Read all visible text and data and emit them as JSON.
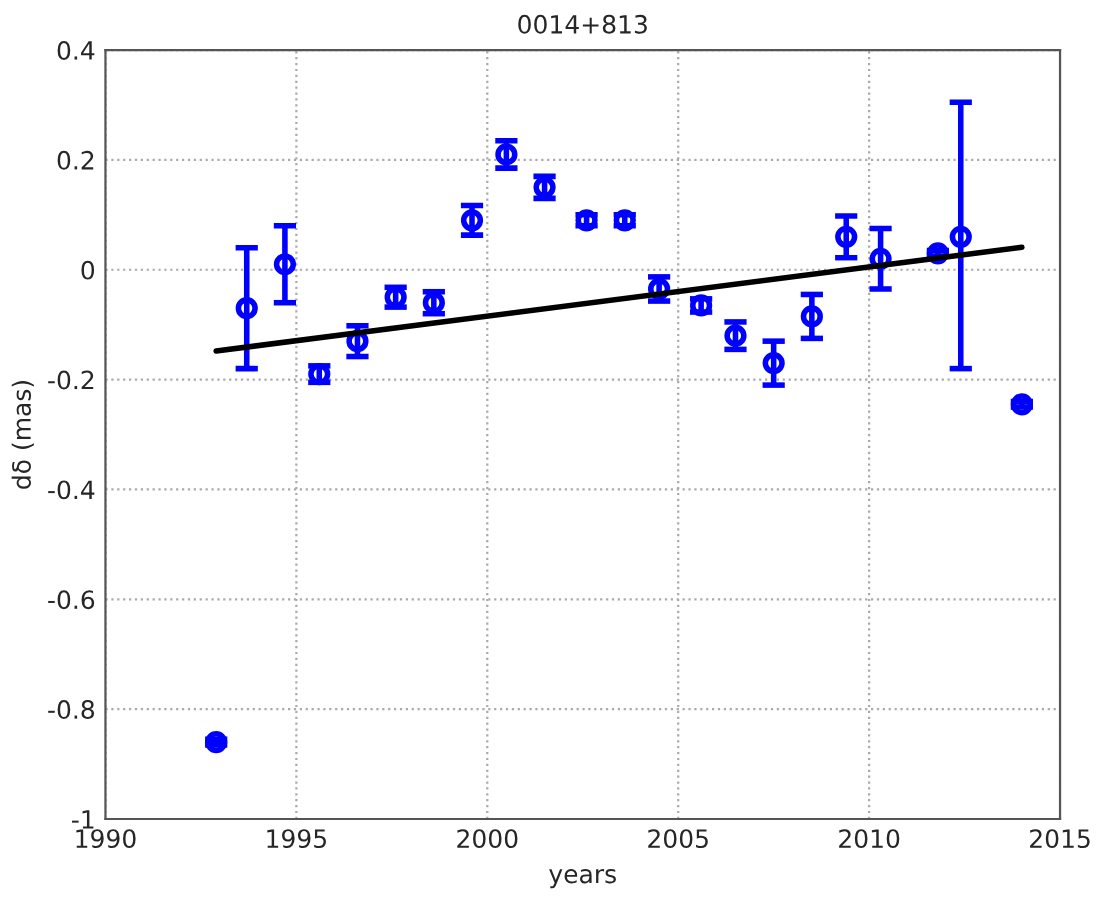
{
  "chart_data": {
    "type": "scatter",
    "title": "0014+813",
    "xlabel": "years",
    "ylabel": "dδ (mas)",
    "xlim": [
      1990,
      2015
    ],
    "xticks": [
      1990,
      1995,
      2000,
      2005,
      2010,
      2015
    ],
    "ylim": [
      -1,
      0.4
    ],
    "yticks": [
      -1,
      -0.8,
      -0.6,
      -0.4,
      -0.2,
      0,
      0.2,
      0.4
    ],
    "grid": true,
    "series": [
      {
        "marker": "circle",
        "color": "#0000ff",
        "x": [
          1992.9,
          1993.7,
          1994.7,
          1995.6,
          1996.6,
          1997.6,
          1998.6,
          1999.6,
          2000.5,
          2001.5,
          2002.6,
          2003.6,
          2004.5,
          2005.6,
          2006.5,
          2007.5,
          2008.5,
          2009.4,
          2010.3,
          2011.8,
          2012.4,
          2014.0
        ],
        "values": [
          -0.86,
          -0.07,
          0.01,
          -0.19,
          -0.13,
          -0.05,
          -0.06,
          0.09,
          0.21,
          0.15,
          0.09,
          0.09,
          -0.035,
          -0.065,
          -0.12,
          -0.17,
          -0.085,
          0.06,
          0.02,
          0.03,
          0.06,
          -0.245
        ],
        "errors": [
          0.005,
          [
            -0.18,
            0.04
          ],
          [
            -0.06,
            0.08
          ],
          0.015,
          0.028,
          0.018,
          0.02,
          0.027,
          0.025,
          0.02,
          0.01,
          0.01,
          0.022,
          0.012,
          0.025,
          0.04,
          0.04,
          0.038,
          0.055,
          0.005,
          [
            -0.18,
            0.305
          ],
          0.005
        ]
      },
      {
        "type": "line",
        "color": "#000000",
        "line_style": "solid",
        "x": [
          1992.9,
          2014.0
        ],
        "values": [
          -0.148,
          0.041
        ]
      }
    ]
  }
}
